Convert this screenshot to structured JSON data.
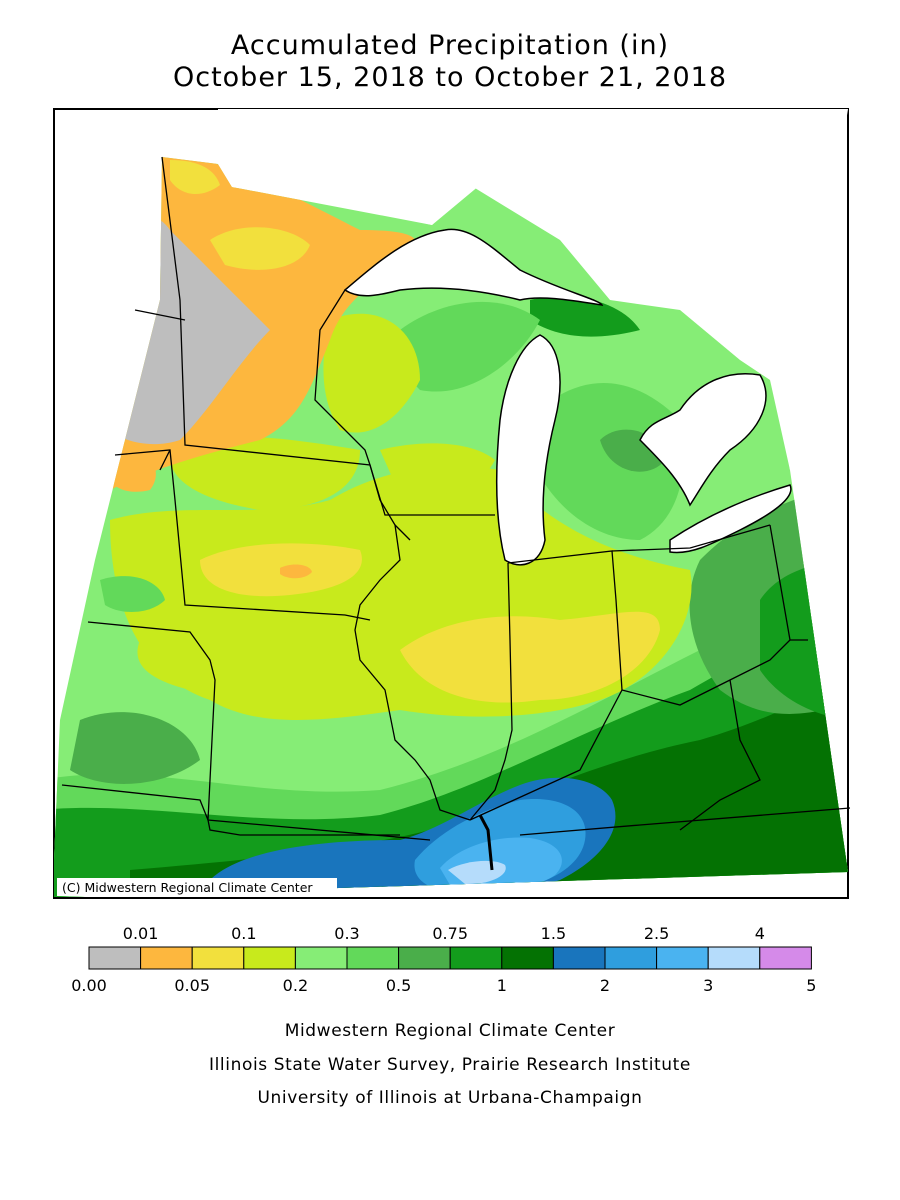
{
  "title_line1": "Accumulated Precipitation (in)",
  "title_line2": "October 15, 2018 to October 21, 2018",
  "map_credit": "(C) Midwestern Regional Climate Center",
  "legend": {
    "bins": [
      {
        "color": "#bebebe"
      },
      {
        "color": "#fdb73e"
      },
      {
        "color": "#f2e03d"
      },
      {
        "color": "#c8ea1c"
      },
      {
        "color": "#86ed76"
      },
      {
        "color": "#62d95a"
      },
      {
        "color": "#4aae4a"
      },
      {
        "color": "#139c1c"
      },
      {
        "color": "#047203"
      },
      {
        "color": "#1975bd"
      },
      {
        "color": "#2f9ede"
      },
      {
        "color": "#4ab3f0"
      },
      {
        "color": "#b5dcfb"
      },
      {
        "color": "#d58ae9"
      }
    ],
    "top_labels": [
      "0.01",
      "0.1",
      "0.3",
      "0.75",
      "1.5",
      "2.5",
      "4"
    ],
    "bottom_labels": [
      "0.00",
      "0.05",
      "0.2",
      "0.5",
      "1",
      "2",
      "3",
      "5"
    ]
  },
  "footer": {
    "line1": "Midwestern Regional Climate Center",
    "line2": "Illinois State Water Survey, Prairie Research Institute",
    "line3": "University of Illinois at Urbana-Champaign"
  }
}
